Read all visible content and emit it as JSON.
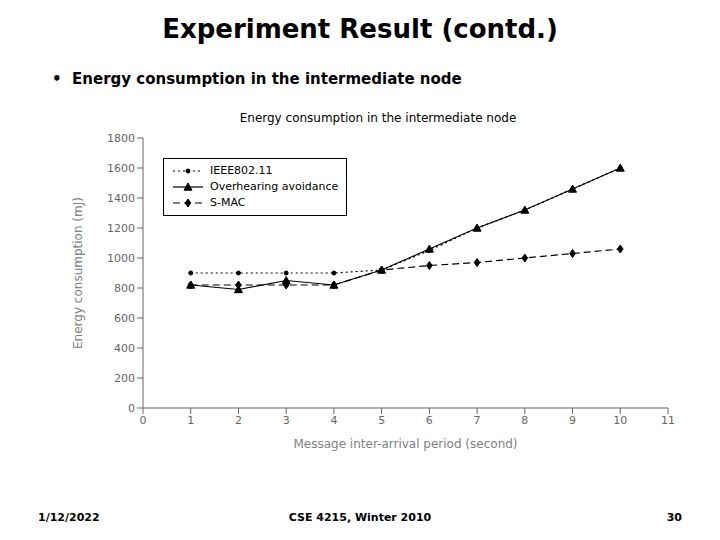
{
  "chart_data": {
    "type": "line",
    "title": "Experiment Result (contd.)",
    "subtitle": "•  Energy consumption in the intermediate node",
    "chart_title": "Energy consumption in the intermediate node",
    "xlabel": "Message inter-arrival period (second)",
    "ylabel": "Energy consumption (mJ)",
    "xlim": [
      0,
      11
    ],
    "ylim": [
      0,
      1800
    ],
    "xticks": [
      0,
      1,
      2,
      3,
      4,
      5,
      6,
      7,
      8,
      9,
      10,
      11
    ],
    "yticks": [
      0,
      200,
      400,
      600,
      800,
      1000,
      1200,
      1400,
      1600,
      1800
    ],
    "grid": false,
    "legend": "upper left",
    "series": [
      {
        "name": "IEEE802.11",
        "color": "#000000",
        "line_style": "dotted",
        "marker": "point",
        "x": [
          1,
          2,
          3,
          4,
          5,
          6,
          7,
          8,
          9,
          10
        ],
        "values": [
          900,
          900,
          900,
          900,
          920,
          1050,
          1200,
          1320,
          1460,
          1600
        ]
      },
      {
        "name": "Overhearing avoidance",
        "color": "#000000",
        "line_style": "solid",
        "marker": "triangle",
        "x": [
          1,
          2,
          3,
          4,
          5,
          6,
          7,
          8,
          9,
          10
        ],
        "values": [
          820,
          790,
          850,
          820,
          920,
          1060,
          1200,
          1320,
          1460,
          1600
        ]
      },
      {
        "name": "S-MAC",
        "color": "#000000",
        "line_style": "dashed",
        "marker": "diamond",
        "x": [
          1,
          2,
          3,
          4,
          5,
          6,
          7,
          8,
          9,
          10
        ],
        "values": [
          820,
          820,
          820,
          820,
          920,
          950,
          970,
          1000,
          1030,
          1060
        ]
      }
    ],
    "footer_left": "1/12/2022",
    "footer_center": "CSE 4215, Winter 2010",
    "footer_right": "30"
  }
}
